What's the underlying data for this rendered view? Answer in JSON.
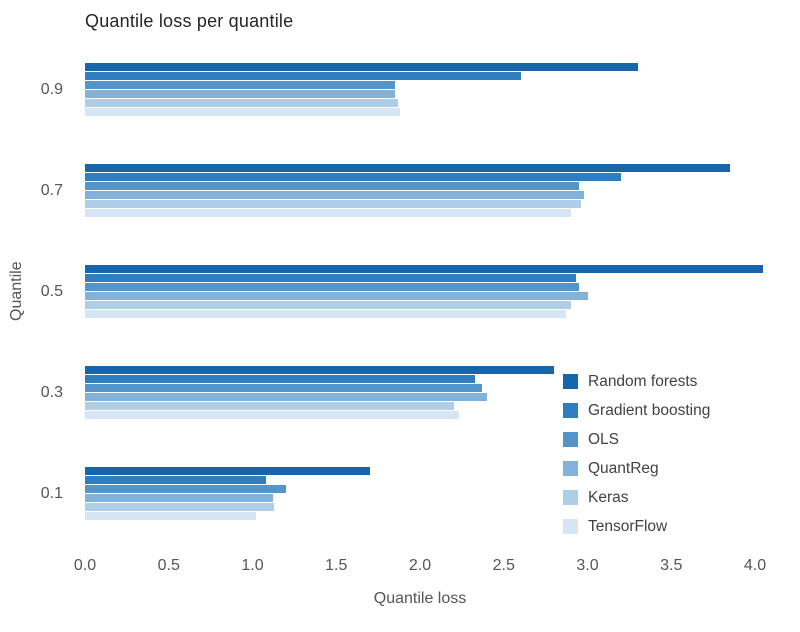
{
  "chart_data": {
    "type": "bar",
    "orientation": "horizontal",
    "title": "Quantile loss per quantile",
    "xlabel": "Quantile loss",
    "ylabel": "Quantile",
    "xlim": [
      0,
      4.0
    ],
    "xticks": [
      "0.0",
      "0.5",
      "1.0",
      "1.5",
      "2.0",
      "2.5",
      "3.0",
      "3.5",
      "4.0"
    ],
    "categories": [
      "0.9",
      "0.7",
      "0.5",
      "0.3",
      "0.1"
    ],
    "grid": false,
    "legend_position": "lower right",
    "series": [
      {
        "name": "Random forests",
        "color": "#1765ab",
        "values": [
          3.3,
          3.85,
          4.05,
          2.8,
          1.7
        ]
      },
      {
        "name": "Gradient boosting",
        "color": "#2f7ec0",
        "values": [
          2.6,
          3.2,
          2.93,
          2.33,
          1.08
        ]
      },
      {
        "name": "OLS",
        "color": "#5295cb",
        "values": [
          1.85,
          2.95,
          2.95,
          2.37,
          1.2
        ]
      },
      {
        "name": "QuantReg",
        "color": "#82b2d9",
        "values": [
          1.85,
          2.98,
          3.0,
          2.4,
          1.12
        ]
      },
      {
        "name": "Keras",
        "color": "#aecde7",
        "values": [
          1.87,
          2.96,
          2.9,
          2.2,
          1.13
        ]
      },
      {
        "name": "TensorFlow",
        "color": "#d6e5f3",
        "values": [
          1.88,
          2.9,
          2.87,
          2.23,
          1.02
        ]
      }
    ]
  }
}
